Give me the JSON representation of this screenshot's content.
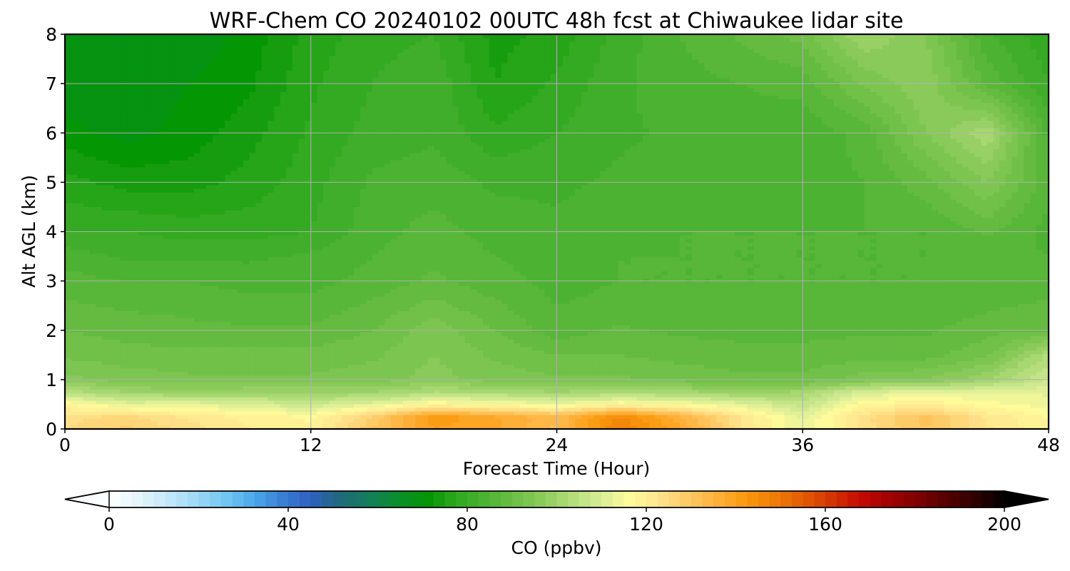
{
  "chart_data": {
    "type": "heatmap",
    "title": "WRF-Chem CO  20240102 00UTC 48h fcst at Chiwaukee lidar site",
    "xlabel": "Forecast Time (Hour)",
    "ylabel": "Alt AGL (km)",
    "xlim": [
      0,
      48
    ],
    "ylim": [
      0,
      8
    ],
    "x_ticks": [
      "0",
      "12",
      "24",
      "36",
      "48"
    ],
    "y_ticks": [
      "0",
      "1",
      "2",
      "3",
      "4",
      "5",
      "6",
      "7",
      "8"
    ],
    "grid": true,
    "colorbar": {
      "label": "CO  (ppbv)",
      "range": [
        0,
        200
      ],
      "ticks": [
        "0",
        "40",
        "80",
        "120",
        "160",
        "200"
      ],
      "extend": "both",
      "levels": 80,
      "colors": [
        "#ffffff",
        "#e4f4fb",
        "#c5e8f9",
        "#9fd8f6",
        "#74c7f3",
        "#4aa9ea",
        "#3b7fd4",
        "#2f5fc0",
        "#206a7a",
        "#147e5a",
        "#0a8f2c",
        "#039503",
        "#2ea81e",
        "#4db232",
        "#6cbe45",
        "#8ccb5c",
        "#b2dc7a",
        "#d6ec96",
        "#fffb9a",
        "#ffe590",
        "#ffca66",
        "#ffb23c",
        "#f99a0f",
        "#ef7e06",
        "#e25c05",
        "#d43504",
        "#c40a02",
        "#a20101",
        "#7d0101",
        "#540101",
        "#2e0000",
        "#000000"
      ]
    },
    "x": [
      0,
      3,
      6,
      9,
      12,
      15,
      18,
      21,
      24,
      27,
      30,
      33,
      36,
      39,
      42,
      45,
      48
    ],
    "y": [
      0,
      0.25,
      0.5,
      0.75,
      1,
      1.5,
      2,
      2.5,
      3,
      3.5,
      4,
      5,
      6,
      7,
      8
    ],
    "z": [
      [
        125,
        128,
        124,
        120,
        118,
        130,
        140,
        138,
        132,
        148,
        138,
        123,
        112,
        124,
        130,
        123,
        118
      ],
      [
        124,
        126,
        122,
        119,
        117,
        128,
        142,
        138,
        133,
        146,
        136,
        122,
        112,
        124,
        131,
        122,
        117
      ],
      [
        118,
        112,
        113,
        110,
        108,
        112,
        118,
        116,
        114,
        118,
        116,
        112,
        106,
        118,
        120,
        116,
        114
      ],
      [
        104,
        100,
        99,
        100,
        100,
        100,
        103,
        102,
        100,
        102,
        101,
        99,
        101,
        110,
        112,
        112,
        112
      ],
      [
        96,
        94,
        93,
        93,
        93,
        94,
        96,
        94,
        93,
        93,
        92,
        91,
        91,
        94,
        95,
        100,
        108
      ],
      [
        92,
        91,
        91,
        91,
        91,
        92,
        95,
        92,
        90,
        90,
        89,
        88,
        88,
        89,
        89,
        92,
        103
      ],
      [
        90,
        89,
        88,
        88,
        88,
        90,
        94,
        90,
        86,
        88,
        87,
        87,
        87,
        87,
        87,
        89,
        90
      ],
      [
        88,
        87,
        87,
        86,
        86,
        88,
        91,
        88,
        85,
        86,
        86,
        86,
        86,
        86,
        86,
        87,
        88
      ],
      [
        86,
        85,
        85,
        84,
        84,
        86,
        88,
        86,
        84,
        85,
        85,
        85,
        85,
        85,
        85,
        86,
        86
      ],
      [
        84,
        82,
        82,
        82,
        83,
        85,
        87,
        85,
        84,
        85,
        85,
        85,
        85,
        85,
        85,
        86,
        85
      ],
      [
        80,
        80,
        79,
        79,
        80,
        84,
        86,
        84,
        83,
        84,
        85,
        85,
        85,
        85,
        85,
        88,
        84
      ],
      [
        76,
        74,
        74,
        76,
        79,
        83,
        84,
        82,
        82,
        83,
        84,
        84,
        84,
        85,
        89,
        95,
        86
      ],
      [
        71,
        69,
        71,
        74,
        78,
        81,
        82,
        78,
        80,
        82,
        83,
        84,
        83,
        86,
        95,
        102,
        84
      ],
      [
        68,
        68,
        70,
        72,
        77,
        80,
        82,
        75,
        78,
        82,
        84,
        85,
        86,
        93,
        97,
        87,
        80
      ],
      [
        68,
        68,
        68,
        71,
        76,
        79,
        80,
        74,
        76,
        81,
        85,
        88,
        91,
        100,
        95,
        83,
        78
      ]
    ]
  }
}
